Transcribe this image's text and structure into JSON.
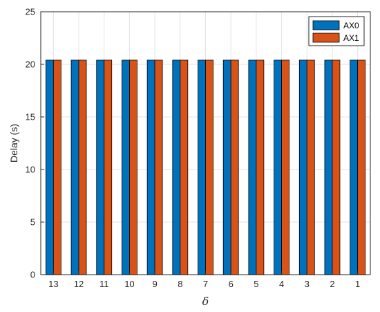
{
  "chart_data": {
    "type": "bar",
    "categories": [
      "13",
      "12",
      "11",
      "10",
      "9",
      "8",
      "7",
      "6",
      "5",
      "4",
      "3",
      "2",
      "1"
    ],
    "series": [
      {
        "name": "AX0",
        "color": "#0072BD",
        "values": [
          20.4,
          20.4,
          20.4,
          20.4,
          20.4,
          20.4,
          20.4,
          20.4,
          20.4,
          20.4,
          20.4,
          20.4,
          20.4
        ]
      },
      {
        "name": "AX1",
        "color": "#D95319",
        "values": [
          20.4,
          20.4,
          20.4,
          20.4,
          20.4,
          20.4,
          20.4,
          20.4,
          20.4,
          20.4,
          20.4,
          20.4,
          20.4
        ]
      }
    ],
    "xlabel": "δ",
    "ylabel": "Delay (s)",
    "ylim": [
      0,
      25
    ],
    "yticks": [
      0,
      5,
      10,
      15,
      20,
      25
    ],
    "grid": true,
    "legend_position": "top-right"
  }
}
